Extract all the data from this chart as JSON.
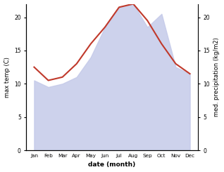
{
  "months": [
    "Jan",
    "Feb",
    "Mar",
    "Apr",
    "May",
    "Jun",
    "Jul",
    "Aug",
    "Sep",
    "Oct",
    "Nov",
    "Dec"
  ],
  "max_temp": [
    12.5,
    10.5,
    11.0,
    13.0,
    16.0,
    18.5,
    21.5,
    22.0,
    19.5,
    16.0,
    13.0,
    11.5
  ],
  "precipitation": [
    10.5,
    9.5,
    10.0,
    11.0,
    14.0,
    18.5,
    21.5,
    22.0,
    18.5,
    20.5,
    12.5,
    11.5
  ],
  "temp_color": "#c0392b",
  "precip_fill_color": "#c5cae9",
  "precip_fill_alpha": 0.85,
  "temp_ylim": [
    0,
    22
  ],
  "precip_ylim": [
    0,
    22
  ],
  "right_yticks": [
    0,
    5,
    10,
    15,
    20
  ],
  "left_yticks": [
    0,
    5,
    10,
    15,
    20
  ],
  "xlabel": "date (month)",
  "ylabel_left": "max temp (C)",
  "ylabel_right": "med. precipitation (kg/m2)",
  "fig_width": 3.18,
  "fig_height": 2.45,
  "dpi": 100
}
